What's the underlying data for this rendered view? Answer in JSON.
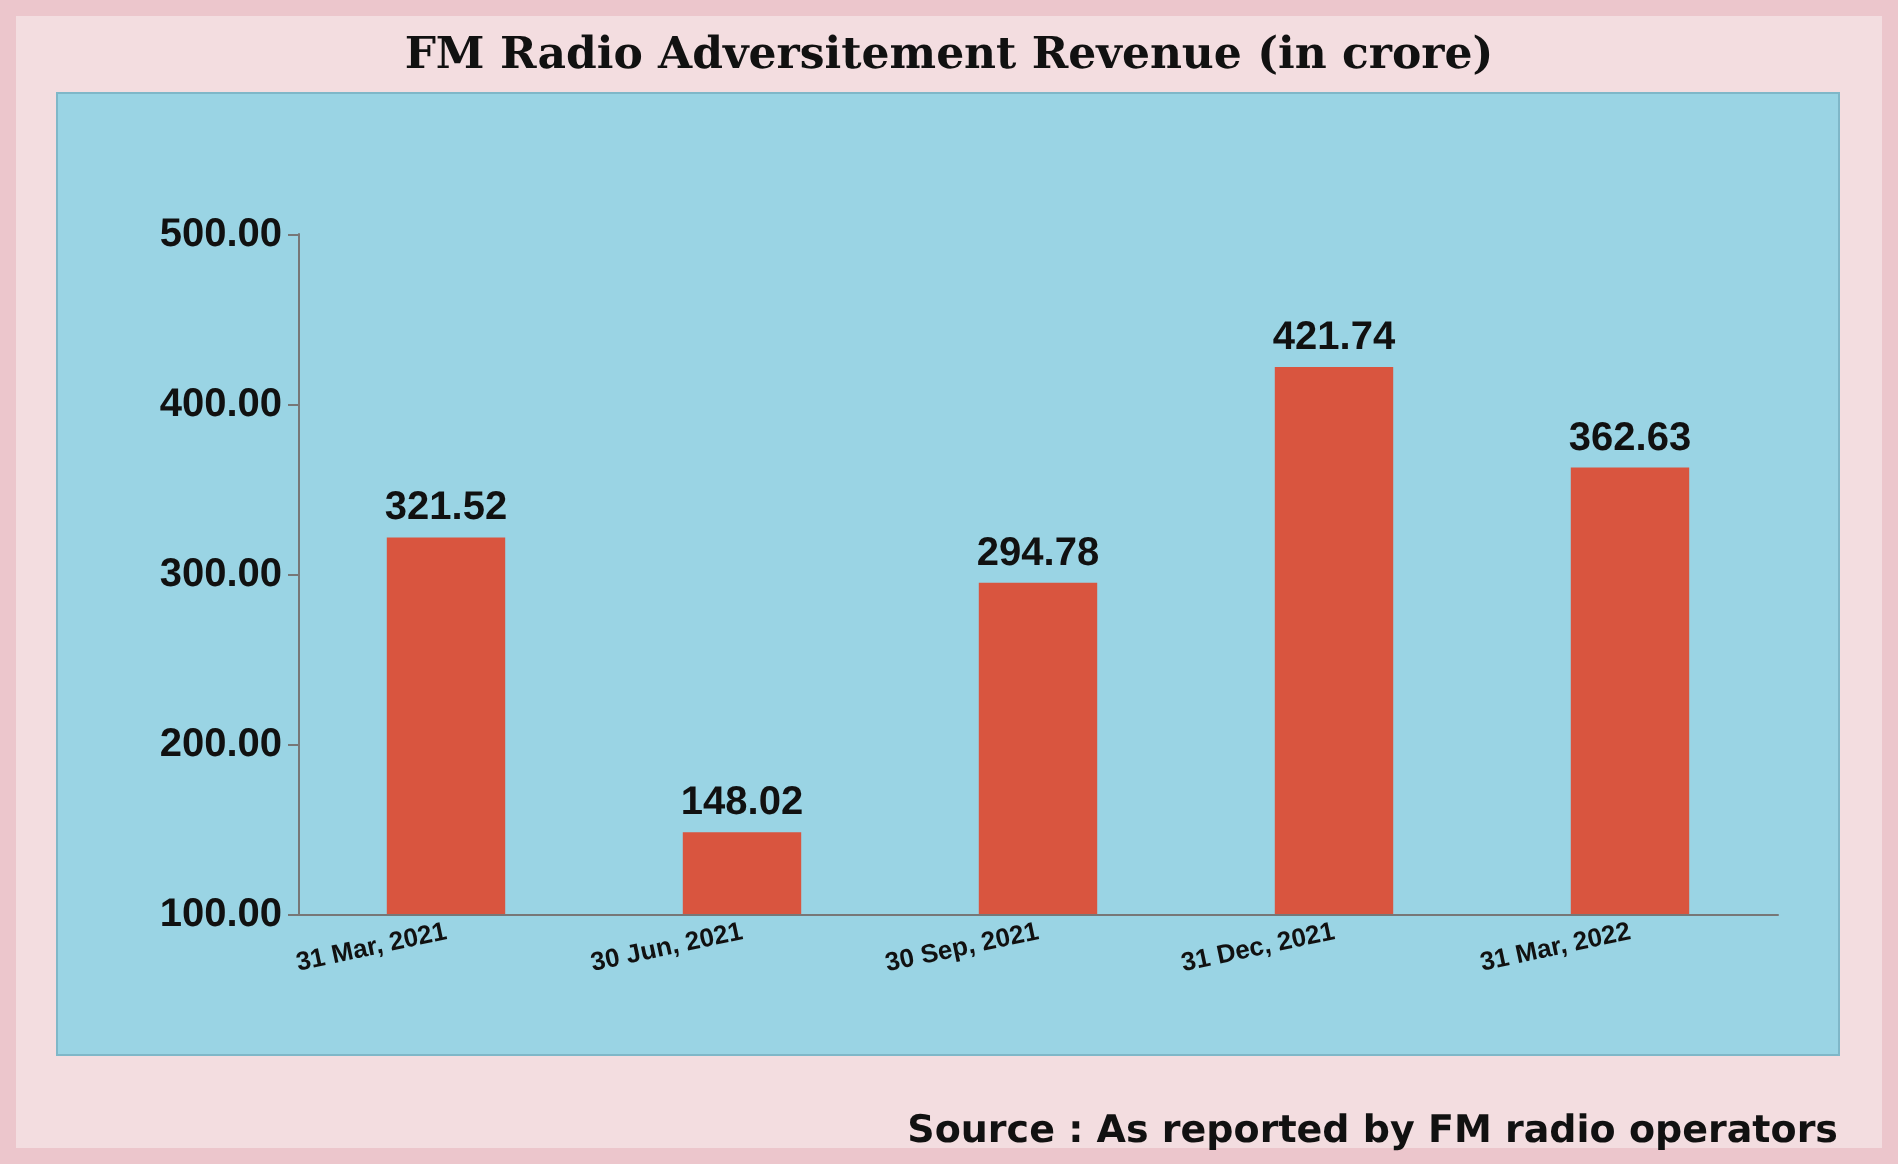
{
  "chart_data": {
    "type": "bar",
    "title": "FM  Radio Adversitement Revenue (in crore)",
    "categories": [
      "31 Mar, 2021",
      "30 Jun, 2021",
      "30 Sep, 2021",
      "31 Dec, 2021",
      "31 Mar, 2022"
    ],
    "values": [
      321.52,
      148.02,
      294.78,
      421.74,
      362.63
    ],
    "color": "#d9553f",
    "ylim": [
      100,
      500
    ],
    "yticks": [
      {
        "value": 100,
        "label": "100.00"
      },
      {
        "value": 200,
        "label": "200.00"
      },
      {
        "value": 300,
        "label": "300.00"
      },
      {
        "value": 400,
        "label": "400.00"
      },
      {
        "value": 500,
        "label": "500.00"
      }
    ],
    "grid": false,
    "data_labels": true,
    "annotations": [
      "Source : As reported by FM radio operators"
    ]
  }
}
